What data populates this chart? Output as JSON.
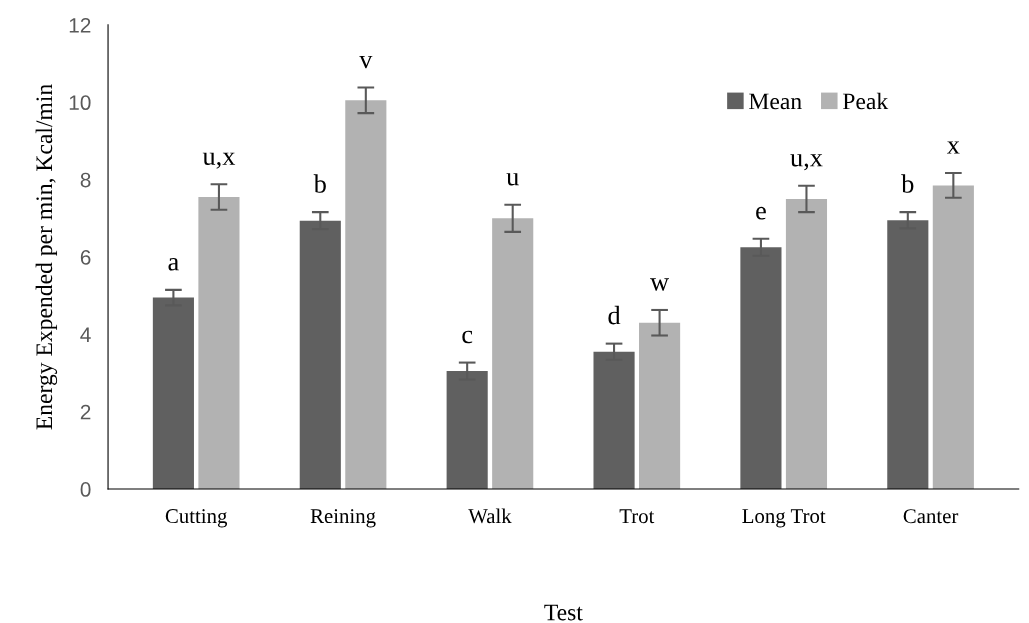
{
  "chart_data": {
    "type": "bar",
    "xlabel": "Test",
    "ylabel": "Energy Expended per min, Kcal/min",
    "categories": [
      "Cutting",
      "Reining",
      "Walk",
      "Trot",
      "Long Trot",
      "Canter"
    ],
    "series": [
      {
        "name": "Mean",
        "color": "#606060",
        "values": [
          4.95,
          6.94,
          3.05,
          3.55,
          6.25,
          6.95
        ],
        "errors": [
          0.2,
          0.22,
          0.22,
          0.21,
          0.22,
          0.21
        ],
        "value_labels": [
          "a",
          "b",
          "c",
          "d",
          "e",
          "b"
        ]
      },
      {
        "name": "Peak",
        "color": "#b2b2b2",
        "values": [
          7.55,
          10.05,
          7.0,
          4.3,
          7.5,
          7.85
        ],
        "errors": [
          0.33,
          0.33,
          0.35,
          0.33,
          0.34,
          0.32
        ],
        "value_labels": [
          "u,x",
          "v",
          "u",
          "w",
          "u,x",
          "x"
        ]
      }
    ],
    "ylim": [
      0,
      12
    ],
    "yticks": [
      0,
      2,
      4,
      6,
      8,
      10,
      12
    ],
    "grid": false,
    "legend": "top right"
  }
}
